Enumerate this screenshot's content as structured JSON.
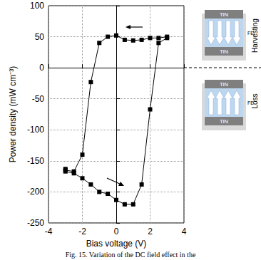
{
  "chart_data": {
    "type": "line",
    "x_label": "Bias voltage (V)",
    "y_label": "Power density (mW cm⁻³)",
    "x": [
      -3,
      -3,
      -2.5,
      -2,
      -1.5,
      -1,
      -0.5,
      0,
      0.5,
      1,
      1.5,
      2,
      2.5,
      3,
      3,
      2.5,
      2,
      1.5,
      1,
      0.5,
      0,
      -0.5,
      -1,
      -1.5,
      -2,
      -2.5,
      -3
    ],
    "values": [
      -163,
      -167,
      -170,
      -178,
      -188,
      -200,
      -203,
      -213,
      -220,
      -220,
      -188,
      -67,
      40,
      48,
      50,
      48,
      48,
      45,
      44,
      45,
      52,
      50,
      40,
      -23,
      -140,
      -167,
      -165
    ],
    "color": "#000000",
    "marker": "square",
    "xlim": [
      -4,
      4
    ],
    "xticks": [
      -4,
      -2,
      0,
      2,
      4
    ],
    "ylim": [
      -250,
      100
    ],
    "yticks": [
      -250,
      -200,
      -150,
      -100,
      -50,
      0,
      50,
      100
    ],
    "grid": true,
    "reference_line": 0,
    "annotations": {
      "top_label": "Harvesting",
      "bottom_label": "Loss",
      "electrode": "TiN",
      "layer": "FE"
    },
    "caption": "Fig. 15. Variation of the DC field effect in the"
  }
}
